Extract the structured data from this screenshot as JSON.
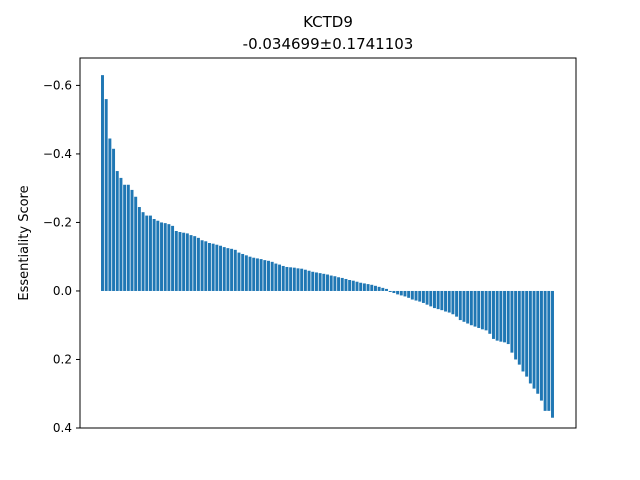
{
  "chart_data": {
    "type": "bar",
    "title": "KCTD9",
    "subtitle": "-0.034699±0.1741103",
    "ylabel": "Essentiality Score",
    "xlabel": "",
    "ylim": [
      0.4,
      -0.68
    ],
    "y_inverted": true,
    "yticks": [
      -0.6,
      -0.4,
      -0.2,
      0.0,
      0.2,
      0.4
    ],
    "ytick_labels": [
      "−0.6",
      "−0.4",
      "−0.2",
      "0.0",
      "0.2",
      "0.4"
    ],
    "grid": false,
    "bar_color": "#1f77b4",
    "values": [
      -0.63,
      -0.56,
      -0.445,
      -0.415,
      -0.35,
      -0.33,
      -0.31,
      -0.31,
      -0.295,
      -0.275,
      -0.245,
      -0.23,
      -0.22,
      -0.22,
      -0.21,
      -0.205,
      -0.2,
      -0.198,
      -0.195,
      -0.19,
      -0.175,
      -0.172,
      -0.17,
      -0.168,
      -0.163,
      -0.16,
      -0.155,
      -0.148,
      -0.145,
      -0.14,
      -0.138,
      -0.135,
      -0.132,
      -0.128,
      -0.125,
      -0.123,
      -0.12,
      -0.112,
      -0.108,
      -0.104,
      -0.1,
      -0.097,
      -0.095,
      -0.093,
      -0.09,
      -0.088,
      -0.085,
      -0.08,
      -0.077,
      -0.073,
      -0.07,
      -0.069,
      -0.068,
      -0.066,
      -0.065,
      -0.062,
      -0.059,
      -0.056,
      -0.054,
      -0.052,
      -0.05,
      -0.048,
      -0.045,
      -0.043,
      -0.04,
      -0.038,
      -0.035,
      -0.032,
      -0.03,
      -0.027,
      -0.024,
      -0.022,
      -0.02,
      -0.018,
      -0.015,
      -0.012,
      -0.009,
      -0.006,
      0.003,
      0.006,
      0.01,
      0.013,
      0.016,
      0.02,
      0.025,
      0.028,
      0.031,
      0.035,
      0.04,
      0.045,
      0.05,
      0.053,
      0.056,
      0.06,
      0.063,
      0.068,
      0.075,
      0.085,
      0.09,
      0.095,
      0.1,
      0.104,
      0.108,
      0.112,
      0.115,
      0.125,
      0.14,
      0.145,
      0.148,
      0.15,
      0.155,
      0.18,
      0.2,
      0.215,
      0.235,
      0.25,
      0.27,
      0.285,
      0.3,
      0.32,
      0.35,
      0.35,
      0.37
    ]
  }
}
